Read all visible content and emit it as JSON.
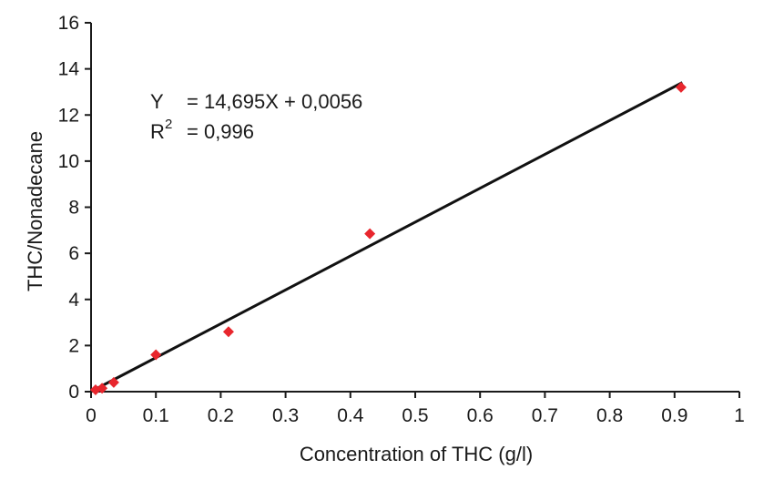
{
  "chart_data": {
    "type": "scatter",
    "title": "",
    "xlabel": "Concentration of THC (g/l)",
    "ylabel": "THC/Nonadecane",
    "xlim": [
      0,
      1
    ],
    "ylim": [
      0,
      16
    ],
    "x_ticks": [
      "0",
      "0.1",
      "0.2",
      "0.3",
      "0.4",
      "0.5",
      "0.6",
      "0.7",
      "0.8",
      "0.9",
      "1"
    ],
    "y_ticks": [
      "0",
      "2",
      "4",
      "6",
      "8",
      "10",
      "12",
      "14",
      "16"
    ],
    "grid": false,
    "marker": "diamond",
    "marker_color": "#e8262d",
    "line_color": "#111111",
    "series": [
      {
        "x": [
          0.007,
          0.017,
          0.035,
          0.1,
          0.212,
          0.43,
          0.91
        ],
        "y": [
          0.08,
          0.15,
          0.4,
          1.6,
          2.6,
          6.85,
          13.2
        ]
      }
    ],
    "fit": {
      "slope": 14.695,
      "intercept": 0.0056,
      "x_range": [
        0.007,
        0.912
      ],
      "equation_prefix": "Y",
      "equation_text": "= 14,695X + 0,0056",
      "r2_prefix": "R",
      "r2_sup": "2",
      "r2_text": "= 0,996"
    }
  }
}
